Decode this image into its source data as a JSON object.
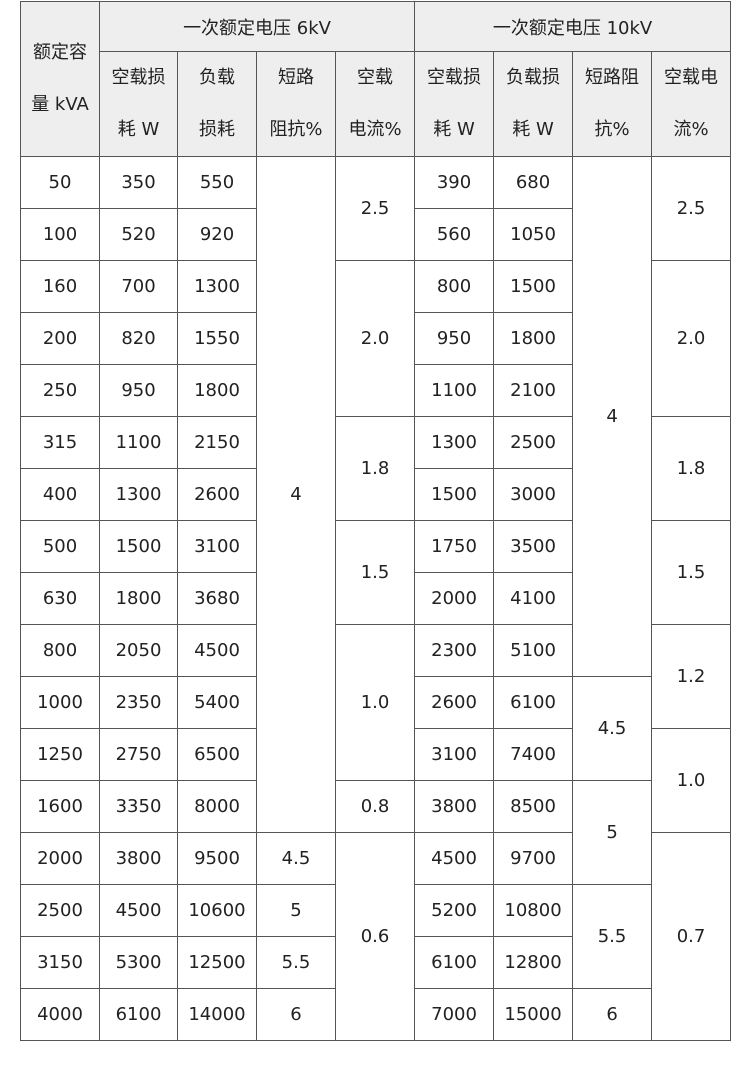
{
  "header": {
    "capacity": [
      "额定容",
      "量 kVA"
    ],
    "group_6kv": "一次额定电压 6kV",
    "group_10kv": "一次额定电压 10kV",
    "sub_6kv": [
      [
        "空载损",
        "耗 W"
      ],
      [
        "负载",
        "损耗"
      ],
      [
        "短路",
        "阻抗%"
      ],
      [
        "空载",
        "电流%"
      ]
    ],
    "sub_10kv": [
      [
        "空载损",
        "耗 W"
      ],
      [
        "负载损",
        "耗 W"
      ],
      [
        "短路阻",
        "抗%"
      ],
      [
        "空载电",
        "流%"
      ]
    ]
  },
  "rows": [
    [
      {
        "v": "50"
      },
      {
        "v": "350"
      },
      {
        "v": "550"
      },
      {
        "v": "4",
        "rs": 13
      },
      {
        "v": "2.5",
        "rs": 2
      },
      {
        "v": "390"
      },
      {
        "v": "680"
      },
      {
        "v": "4",
        "rs": 10
      },
      {
        "v": "2.5",
        "rs": 2
      }
    ],
    [
      {
        "v": "100"
      },
      {
        "v": "520"
      },
      {
        "v": "920"
      },
      {
        "v": "560"
      },
      {
        "v": "1050"
      }
    ],
    [
      {
        "v": "160"
      },
      {
        "v": "700"
      },
      {
        "v": "1300"
      },
      {
        "v": "2.0",
        "rs": 3
      },
      {
        "v": "800"
      },
      {
        "v": "1500"
      },
      {
        "v": "2.0",
        "rs": 3
      }
    ],
    [
      {
        "v": "200"
      },
      {
        "v": "820"
      },
      {
        "v": "1550"
      },
      {
        "v": "950"
      },
      {
        "v": "1800"
      }
    ],
    [
      {
        "v": "250"
      },
      {
        "v": "950"
      },
      {
        "v": "1800"
      },
      {
        "v": "1100"
      },
      {
        "v": "2100"
      }
    ],
    [
      {
        "v": "315"
      },
      {
        "v": "1100"
      },
      {
        "v": "2150"
      },
      {
        "v": "1.8",
        "rs": 2
      },
      {
        "v": "1300"
      },
      {
        "v": "2500"
      },
      {
        "v": "1.8",
        "rs": 2
      }
    ],
    [
      {
        "v": "400"
      },
      {
        "v": "1300"
      },
      {
        "v": "2600"
      },
      {
        "v": "1500"
      },
      {
        "v": "3000"
      }
    ],
    [
      {
        "v": "500"
      },
      {
        "v": "1500"
      },
      {
        "v": "3100"
      },
      {
        "v": "1.5",
        "rs": 2
      },
      {
        "v": "1750"
      },
      {
        "v": "3500"
      },
      {
        "v": "1.5",
        "rs": 2
      }
    ],
    [
      {
        "v": "630"
      },
      {
        "v": "1800"
      },
      {
        "v": "3680"
      },
      {
        "v": "2000"
      },
      {
        "v": "4100"
      }
    ],
    [
      {
        "v": "800"
      },
      {
        "v": "2050"
      },
      {
        "v": "4500"
      },
      {
        "v": "1.0",
        "rs": 3
      },
      {
        "v": "2300"
      },
      {
        "v": "5100"
      },
      {
        "v": "1.2",
        "rs": 2
      }
    ],
    [
      {
        "v": "1000"
      },
      {
        "v": "2350"
      },
      {
        "v": "5400"
      },
      {
        "v": "2600"
      },
      {
        "v": "6100"
      },
      {
        "v": "4.5",
        "rs": 2
      }
    ],
    [
      {
        "v": "1250"
      },
      {
        "v": "2750"
      },
      {
        "v": "6500"
      },
      {
        "v": "3100"
      },
      {
        "v": "7400"
      },
      {
        "v": "1.0",
        "rs": 2
      }
    ],
    [
      {
        "v": "1600"
      },
      {
        "v": "3350"
      },
      {
        "v": "8000"
      },
      {
        "v": "0.8"
      },
      {
        "v": "3800"
      },
      {
        "v": "8500"
      },
      {
        "v": "5",
        "rs": 2
      }
    ],
    [
      {
        "v": "2000"
      },
      {
        "v": "3800"
      },
      {
        "v": "9500"
      },
      {
        "v": "4.5"
      },
      {
        "v": "0.6",
        "rs": 4
      },
      {
        "v": "4500"
      },
      {
        "v": "9700"
      },
      {
        "v": "0.7",
        "rs": 4
      }
    ],
    [
      {
        "v": "2500"
      },
      {
        "v": "4500"
      },
      {
        "v": "10600"
      },
      {
        "v": "5"
      },
      {
        "v": "5200"
      },
      {
        "v": "10800"
      },
      {
        "v": "5.5",
        "rs": 2
      }
    ],
    [
      {
        "v": "3150"
      },
      {
        "v": "5300"
      },
      {
        "v": "12500"
      },
      {
        "v": "5.5"
      },
      {
        "v": "6100"
      },
      {
        "v": "12800"
      }
    ],
    [
      {
        "v": "4000"
      },
      {
        "v": "6100"
      },
      {
        "v": "14000"
      },
      {
        "v": "6"
      },
      {
        "v": "7000"
      },
      {
        "v": "15000"
      },
      {
        "v": "6"
      }
    ]
  ]
}
